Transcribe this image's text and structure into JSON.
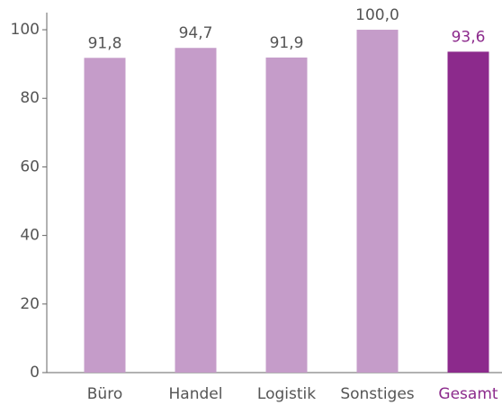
{
  "chart_data": {
    "type": "bar",
    "categories": [
      "Büro",
      "Handel",
      "Logistik",
      "Sonstiges",
      "Gesamt"
    ],
    "values": [
      91.8,
      94.7,
      91.9,
      100.0,
      93.6
    ],
    "value_labels": [
      "91,8",
      "94,7",
      "91,9",
      "100,0",
      "93,6"
    ],
    "colors": [
      "#c59cc9",
      "#c59cc9",
      "#c59cc9",
      "#c59cc9",
      "#8c2a8c"
    ],
    "label_colors": [
      "#555555",
      "#555555",
      "#555555",
      "#555555",
      "#8c2a8c"
    ],
    "ylim": [
      0,
      105
    ],
    "yticks": [
      0,
      20,
      40,
      60,
      80,
      100
    ],
    "grid": false
  }
}
